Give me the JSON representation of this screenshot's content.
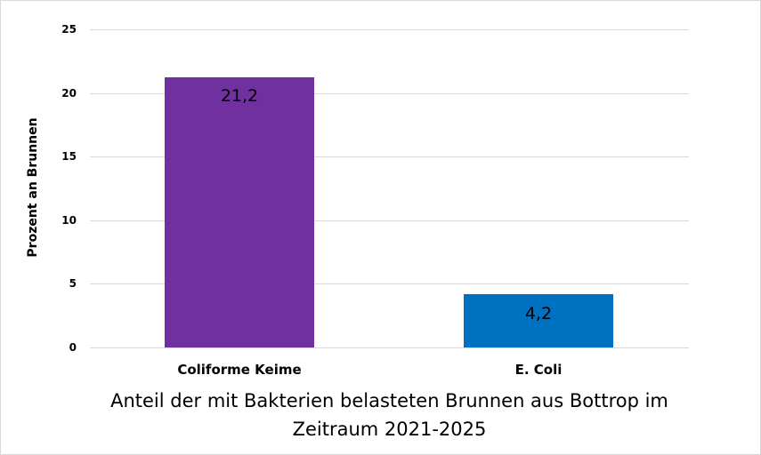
{
  "chart_data": {
    "type": "bar",
    "title": "Anteil der mit Bakterien belasteten Brunnen aus Bottrop im Zeitraum 2021-2025",
    "title_lines": [
      "Anteil der mit Bakterien belasteten Brunnen aus Bottrop im",
      "Zeitraum 2021-2025"
    ],
    "xlabel": "",
    "ylabel": "Prozent an Brunnen",
    "categories": [
      "Coliforme Keime",
      "E. Coli"
    ],
    "values": [
      21.2,
      4.2
    ],
    "data_labels": [
      "21,2",
      "4,2"
    ],
    "colors": [
      "#7030a0",
      "#0070c0"
    ],
    "ylim": [
      0,
      25
    ],
    "yticks": [
      "0",
      "5",
      "10",
      "15",
      "20",
      "25"
    ],
    "grid": true,
    "legend": null
  }
}
